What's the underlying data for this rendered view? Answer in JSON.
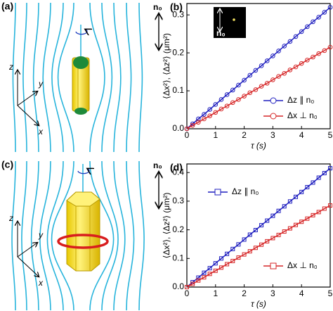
{
  "diagrams": [
    {
      "label": "(a)",
      "axes": [
        "z",
        "y",
        "x"
      ],
      "director": "n₀"
    },
    {
      "label": "(c)",
      "axes": [
        "z",
        "y",
        "x"
      ],
      "director": "n₀"
    }
  ],
  "chart_data": [
    {
      "type": "line",
      "panel_label": "(b)",
      "x_label": "τ (s)",
      "y_label": "⟨Δx²⟩, ⟨Δz²⟩ (μm²)",
      "inset_label": "n₀",
      "legend": "lower right",
      "marker": "circle",
      "xlim": [
        0,
        5
      ],
      "xticks": [
        0,
        1,
        2,
        3,
        4,
        5
      ],
      "ylim": [
        0,
        0.33
      ],
      "yticks": [
        {
          "value": 0,
          "label": "0.0"
        },
        0.1,
        0.2,
        0.3
      ],
      "x": [
        0,
        0.2,
        0.4,
        0.6,
        0.8,
        1,
        1.2,
        1.4,
        1.6,
        1.8,
        2,
        2.2,
        2.4,
        2.6,
        2.8,
        3,
        3.2,
        3.4,
        3.6,
        3.8,
        4,
        4.2,
        4.4,
        4.6,
        4.8,
        5
      ],
      "series": [
        {
          "name": "Δz ∥ n₀",
          "color": "#1f1fbf",
          "values": [
            0,
            0.013,
            0.026,
            0.038,
            0.051,
            0.064,
            0.077,
            0.09,
            0.102,
            0.115,
            0.128,
            0.141,
            0.154,
            0.166,
            0.179,
            0.192,
            0.205,
            0.218,
            0.23,
            0.243,
            0.256,
            0.269,
            0.282,
            0.294,
            0.307,
            0.32
          ]
        },
        {
          "name": "Δx ⊥ n₀",
          "color": "#d62728",
          "values": [
            0,
            0.009,
            0.017,
            0.026,
            0.034,
            0.043,
            0.052,
            0.06,
            0.069,
            0.077,
            0.086,
            0.095,
            0.103,
            0.112,
            0.12,
            0.129,
            0.138,
            0.146,
            0.155,
            0.163,
            0.172,
            0.181,
            0.189,
            0.198,
            0.206,
            0.215
          ]
        }
      ]
    },
    {
      "type": "line",
      "panel_label": "(d)",
      "x_label": "τ (s)",
      "y_label": "⟨Δx²⟩, ⟨Δz²⟩ (μm²)",
      "legend": "split",
      "marker": "square",
      "xlim": [
        0,
        5
      ],
      "xticks": [
        0,
        1,
        2,
        3,
        4,
        5
      ],
      "ylim": [
        0,
        0.43
      ],
      "yticks": [
        {
          "value": 0,
          "label": "0.0"
        },
        0.1,
        0.2,
        0.3,
        0.4
      ],
      "x": [
        0,
        0.2,
        0.4,
        0.6,
        0.8,
        1,
        1.2,
        1.4,
        1.6,
        1.8,
        2,
        2.2,
        2.4,
        2.6,
        2.8,
        3,
        3.2,
        3.4,
        3.6,
        3.8,
        4,
        4.2,
        4.4,
        4.6,
        4.8,
        5
      ],
      "series": [
        {
          "name": "Δz ∥ n₀",
          "color": "#1f1fbf",
          "values": [
            0,
            0.017,
            0.033,
            0.05,
            0.066,
            0.083,
            0.1,
            0.116,
            0.133,
            0.149,
            0.166,
            0.183,
            0.199,
            0.216,
            0.232,
            0.249,
            0.266,
            0.282,
            0.299,
            0.315,
            0.332,
            0.349,
            0.365,
            0.382,
            0.398,
            0.415
          ]
        },
        {
          "name": "Δx ⊥ n₀",
          "color": "#d62728",
          "values": [
            0,
            0.011,
            0.023,
            0.034,
            0.046,
            0.057,
            0.068,
            0.08,
            0.091,
            0.103,
            0.114,
            0.125,
            0.137,
            0.148,
            0.16,
            0.171,
            0.182,
            0.194,
            0.205,
            0.217,
            0.228,
            0.239,
            0.251,
            0.262,
            0.274,
            0.285
          ]
        }
      ]
    }
  ]
}
